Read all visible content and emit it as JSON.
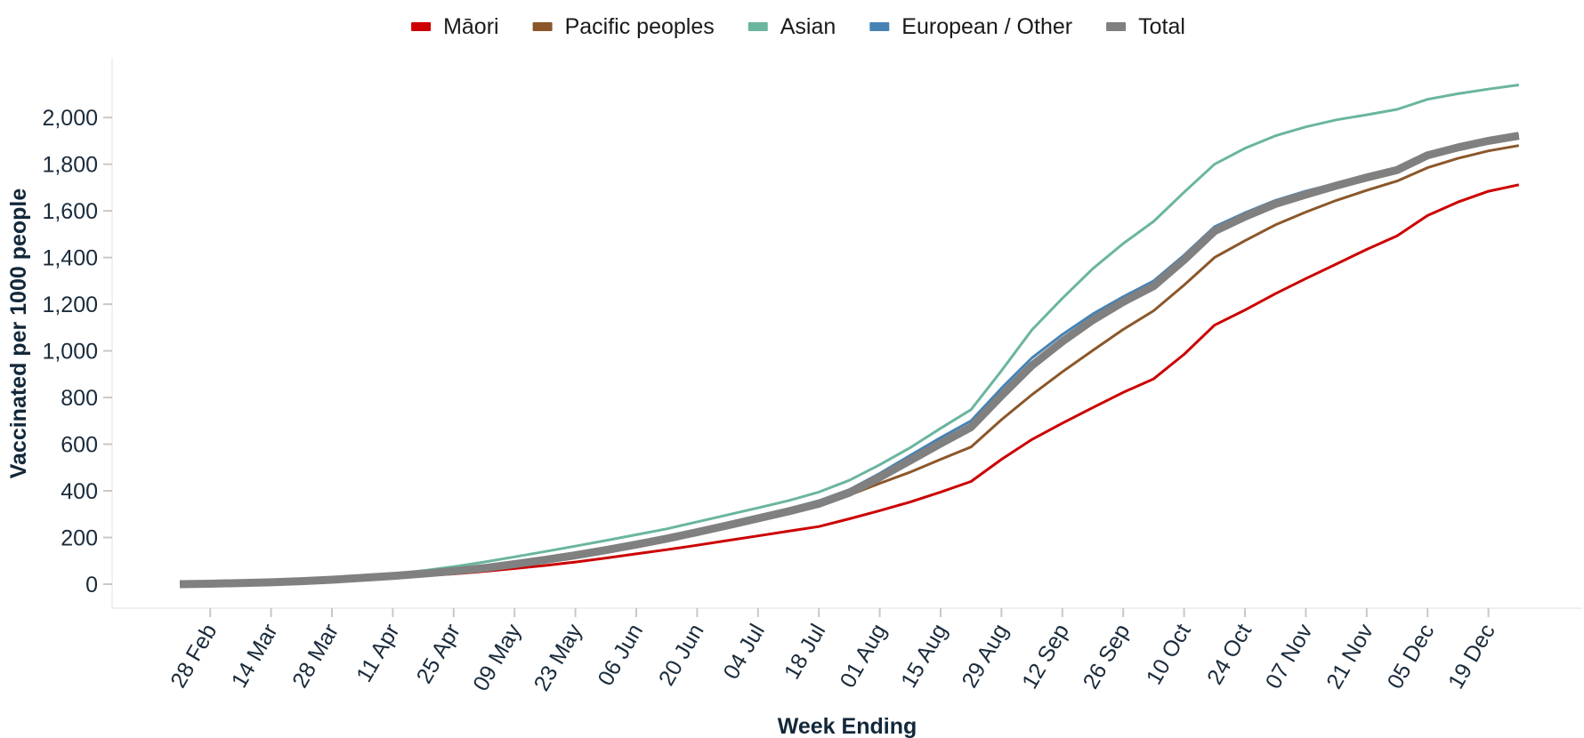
{
  "chart_data": {
    "type": "line",
    "xlabel": "Week Ending",
    "ylabel": "Vaccinated per 1000 people",
    "ylim": [
      -100,
      2250
    ],
    "yticks": [
      0,
      200,
      400,
      600,
      800,
      1000,
      1200,
      1400,
      1600,
      1800,
      2000
    ],
    "ytick_labels": [
      "0",
      "200",
      "400",
      "600",
      "800",
      "1,000",
      "1,200",
      "1,400",
      "1,600",
      "1,800",
      "2,000"
    ],
    "xtick_labels": [
      "28 Feb",
      "14 Mar",
      "28 Mar",
      "11 Apr",
      "25 Apr",
      "09 May",
      "23 May",
      "06 Jun",
      "20 Jun",
      "04 Jul",
      "18 Jul",
      "01 Aug",
      "15 Aug",
      "29 Aug",
      "12 Sep",
      "26 Sep",
      "10 Oct",
      "24 Oct",
      "07 Nov",
      "21 Nov",
      "05 Dec",
      "19 Dec"
    ],
    "x": [
      "21 Feb",
      "28 Feb",
      "07 Mar",
      "14 Mar",
      "21 Mar",
      "28 Mar",
      "04 Apr",
      "11 Apr",
      "18 Apr",
      "25 Apr",
      "02 May",
      "09 May",
      "16 May",
      "23 May",
      "30 May",
      "06 Jun",
      "13 Jun",
      "20 Jun",
      "27 Jun",
      "04 Jul",
      "11 Jul",
      "18 Jul",
      "25 Jul",
      "01 Aug",
      "08 Aug",
      "15 Aug",
      "22 Aug",
      "29 Aug",
      "05 Sep",
      "12 Sep",
      "19 Sep",
      "26 Sep",
      "03 Oct",
      "10 Oct",
      "17 Oct",
      "24 Oct",
      "31 Oct",
      "07 Nov",
      "14 Nov",
      "21 Nov",
      "28 Nov",
      "05 Dec",
      "12 Dec",
      "19 Dec",
      "26 Dec"
    ],
    "legend_position": "top-center",
    "grid": false,
    "series": [
      {
        "name": "Māori",
        "color": "#cc0000",
        "values": [
          0,
          2,
          4,
          7,
          12,
          17,
          24,
          30,
          36,
          44,
          55,
          67,
          80,
          95,
          112,
          130,
          148,
          167,
          187,
          207,
          227,
          247,
          280,
          315,
          352,
          395,
          440,
          535,
          620,
          690,
          757,
          822,
          880,
          985,
          1110,
          1175,
          1245,
          1310,
          1372,
          1435,
          1493,
          1580,
          1638,
          1684,
          1712
        ]
      },
      {
        "name": "Pacific peoples",
        "color": "#8b572a",
        "values": [
          0,
          2,
          5,
          8,
          13,
          19,
          27,
          36,
          45,
          58,
          72,
          90,
          108,
          128,
          150,
          175,
          200,
          228,
          256,
          285,
          312,
          342,
          382,
          432,
          480,
          535,
          588,
          705,
          812,
          910,
          1002,
          1092,
          1172,
          1282,
          1400,
          1472,
          1540,
          1595,
          1645,
          1688,
          1728,
          1785,
          1825,
          1857,
          1880
        ]
      },
      {
        "name": "Asian",
        "color": "#6ab5a0",
        "values": [
          0,
          2,
          5,
          9,
          15,
          22,
          32,
          44,
          58,
          75,
          95,
          117,
          140,
          163,
          187,
          212,
          237,
          267,
          297,
          327,
          358,
          395,
          445,
          512,
          585,
          668,
          748,
          915,
          1090,
          1225,
          1352,
          1460,
          1555,
          1680,
          1800,
          1868,
          1922,
          1960,
          1990,
          2012,
          2035,
          2078,
          2102,
          2122,
          2140
        ]
      },
      {
        "name": "European / Other",
        "color": "#4682b4",
        "values": [
          0,
          2,
          5,
          8,
          13,
          19,
          27,
          36,
          46,
          58,
          72,
          90,
          110,
          130,
          152,
          177,
          202,
          232,
          262,
          292,
          323,
          358,
          405,
          475,
          552,
          628,
          700,
          840,
          970,
          1070,
          1158,
          1232,
          1300,
          1410,
          1532,
          1592,
          1645,
          1685,
          1718,
          1752,
          1782,
          1845,
          1878,
          1905,
          1925
        ]
      },
      {
        "name": "Total",
        "color": "#808080",
        "values": [
          0,
          2,
          5,
          8,
          13,
          19,
          27,
          35,
          45,
          56,
          69,
          86,
          104,
          124,
          146,
          170,
          195,
          223,
          252,
          282,
          312,
          345,
          392,
          458,
          530,
          603,
          673,
          808,
          937,
          1040,
          1132,
          1210,
          1278,
          1390,
          1513,
          1575,
          1630,
          1670,
          1708,
          1743,
          1775,
          1838,
          1872,
          1900,
          1922
        ]
      }
    ]
  }
}
